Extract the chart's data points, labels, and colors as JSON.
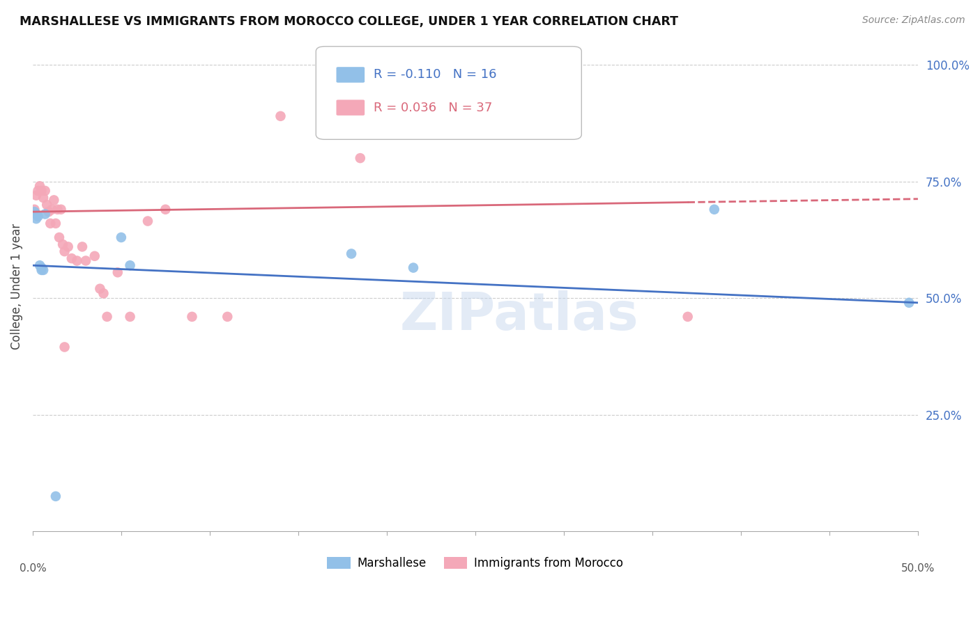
{
  "title": "MARSHALLESE VS IMMIGRANTS FROM MOROCCO COLLEGE, UNDER 1 YEAR CORRELATION CHART",
  "source": "Source: ZipAtlas.com",
  "ylabel": "College, Under 1 year",
  "legend_label1": "Marshallese",
  "legend_label2": "Immigrants from Morocco",
  "R1": -0.11,
  "N1": 16,
  "R2": 0.036,
  "N2": 37,
  "blue_color": "#92C0E8",
  "pink_color": "#F4A8B8",
  "blue_line_color": "#4472C4",
  "pink_line_color": "#D9687A",
  "watermark": "ZIPatlas",
  "xlim": [
    0.0,
    0.5
  ],
  "ylim": [
    0.0,
    1.05
  ],
  "blue_x": [
    0.001,
    0.002,
    0.002,
    0.003,
    0.004,
    0.005,
    0.005,
    0.006,
    0.007,
    0.05,
    0.055,
    0.18,
    0.215,
    0.385,
    0.495,
    0.013
  ],
  "blue_y": [
    0.685,
    0.68,
    0.67,
    0.675,
    0.57,
    0.56,
    0.565,
    0.56,
    0.68,
    0.63,
    0.57,
    0.595,
    0.565,
    0.69,
    0.49,
    0.075
  ],
  "pink_x": [
    0.001,
    0.002,
    0.003,
    0.004,
    0.005,
    0.006,
    0.007,
    0.008,
    0.009,
    0.01,
    0.011,
    0.012,
    0.013,
    0.014,
    0.015,
    0.016,
    0.017,
    0.018,
    0.02,
    0.022,
    0.025,
    0.028,
    0.03,
    0.035,
    0.038,
    0.04,
    0.042,
    0.048,
    0.055,
    0.065,
    0.075,
    0.09,
    0.11,
    0.14,
    0.185,
    0.37,
    0.018
  ],
  "pink_y": [
    0.69,
    0.72,
    0.73,
    0.74,
    0.73,
    0.715,
    0.73,
    0.7,
    0.685,
    0.66,
    0.69,
    0.71,
    0.66,
    0.69,
    0.63,
    0.69,
    0.615,
    0.6,
    0.61,
    0.585,
    0.58,
    0.61,
    0.58,
    0.59,
    0.52,
    0.51,
    0.46,
    0.555,
    0.46,
    0.665,
    0.69,
    0.46,
    0.46,
    0.89,
    0.8,
    0.46,
    0.395
  ],
  "pink_line_start_x": 0.0,
  "pink_line_solid_end_x": 0.37,
  "pink_line_dashed_end_x": 0.5,
  "blue_line_intercept": 0.57,
  "blue_line_slope": -0.16,
  "pink_line_intercept": 0.685,
  "pink_line_slope": 0.055
}
